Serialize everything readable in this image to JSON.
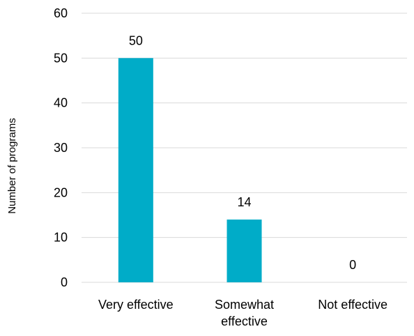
{
  "chart_data": {
    "type": "bar",
    "title": "",
    "xlabel": "",
    "ylabel": "Number of programs",
    "categories": [
      "Very effective",
      "Somewhat effective",
      "Not effective"
    ],
    "category_lines": [
      [
        "Very effective"
      ],
      [
        "Somewhat",
        "effective"
      ],
      [
        "Not effective"
      ]
    ],
    "values": [
      50,
      14,
      0
    ],
    "data_labels": [
      "50",
      "14",
      "0"
    ],
    "ylim": [
      0,
      60
    ],
    "yticks": [
      0,
      10,
      20,
      30,
      40,
      50,
      60
    ],
    "grid": true,
    "legend": "none",
    "bar_color": "#00ACC8",
    "grid_color": "#D9D9D9"
  }
}
